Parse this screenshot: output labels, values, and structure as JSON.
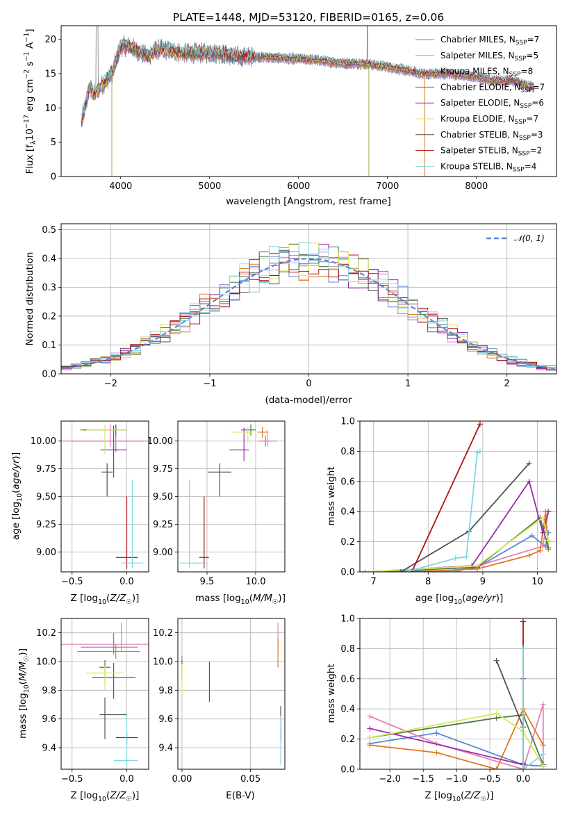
{
  "colors": {
    "Chabrier MILES": "#5b86d6",
    "Salpeter MILES": "#e57fb4",
    "Kroupa MILES": "#e07a1f",
    "Chabrier ELODIE": "#4a7a4a",
    "Salpeter ELODIE": "#9a2aa8",
    "Kroupa ELODIE": "#d7e85c",
    "Chabrier STELIB": "#505050",
    "Salpeter STELIB": "#b01010",
    "Kroupa STELIB": "#7fd8e0"
  },
  "chart_data": [
    {
      "id": "spectrum",
      "type": "line",
      "title": "PLATE=1448, MJD=53120, FIBERID=0165, z=0.06",
      "xlabel": "wavelength [Angstrom, rest frame]",
      "ylabel": "Flux [f$_\\lambda$10$^{-17}$ erg cm$^{-2}$ s$^{-1}$ A$^{-1}$]",
      "xlim": [
        3330,
        8900
      ],
      "ylim": [
        0,
        22
      ],
      "xticks": [
        4000,
        5000,
        6000,
        7000,
        8000
      ],
      "yticks": [
        0,
        5,
        10,
        15,
        20
      ],
      "grid": false,
      "legend_position": "top-right",
      "legend": [
        {
          "label": "Chabrier MILES, N$_{SSP}$=7",
          "color_key": "Chabrier MILES"
        },
        {
          "label": "Salpeter MILES, N$_{SSP}$=5",
          "color_key": "Salpeter MILES"
        },
        {
          "label": "Kroupa MILES, N$_{SSP}$=8",
          "color_key": "Kroupa MILES"
        },
        {
          "label": "Chabrier ELODIE, N$_{SSP}$=7",
          "color_key": "Chabrier ELODIE"
        },
        {
          "label": "Salpeter ELODIE, N$_{SSP}$=6",
          "color_key": "Salpeter ELODIE"
        },
        {
          "label": "Kroupa ELODIE, N$_{SSP}$=7",
          "color_key": "Kroupa ELODIE"
        },
        {
          "label": "Chabrier STELIB, N$_{SSP}$=3",
          "color_key": "Chabrier STELIB"
        },
        {
          "label": "Salpeter STELIB, N$_{SSP}$=2",
          "color_key": "Salpeter STELIB"
        },
        {
          "label": "Kroupa STELIB, N$_{SSP}$=4",
          "color_key": "Kroupa STELIB"
        }
      ],
      "continuum": [
        [
          3560,
          8
        ],
        [
          3650,
          13
        ],
        [
          3700,
          12
        ],
        [
          3800,
          13.5
        ],
        [
          3900,
          15
        ],
        [
          4000,
          19
        ],
        [
          4100,
          19
        ],
        [
          4300,
          17.5
        ],
        [
          4400,
          18.5
        ],
        [
          4500,
          18.5
        ],
        [
          4700,
          18
        ],
        [
          4900,
          18
        ],
        [
          5100,
          18
        ],
        [
          5300,
          17.5
        ],
        [
          5500,
          17.5
        ],
        [
          5900,
          17.2
        ],
        [
          6200,
          17
        ],
        [
          6500,
          16.5
        ],
        [
          6700,
          16.5
        ],
        [
          7000,
          16
        ],
        [
          7200,
          15.5
        ],
        [
          7400,
          15
        ],
        [
          7700,
          15
        ],
        [
          8000,
          14.5
        ],
        [
          8200,
          14
        ],
        [
          8400,
          14
        ],
        [
          8650,
          13
        ]
      ],
      "dropouts": [
        [
          3900,
          0
        ],
        [
          6790,
          0
        ],
        [
          7420,
          0
        ]
      ]
    },
    {
      "id": "residuals",
      "type": "line",
      "xlabel": "(data-model)/error",
      "ylabel": "Normed distribution",
      "xlim": [
        -2.5,
        2.5
      ],
      "ylim": [
        0,
        0.52
      ],
      "xticks": [
        -2,
        -1,
        0,
        1,
        2
      ],
      "yticks": [
        0.0,
        0.1,
        0.2,
        0.3,
        0.4,
        0.5
      ],
      "grid": true,
      "legend_position": "top-right",
      "reference": {
        "label": "$\\mathcal{N}(0,1)$",
        "mean": 0,
        "sigma": 1,
        "color": "#5b86d6"
      },
      "bin_width": 0.1
    },
    {
      "id": "age-vs-Z",
      "type": "scatter",
      "xlabel": "Z [log$_{10}$($Z/Z_\\odot$)]",
      "ylabel": "age  [log$_{10}$($age/yr$)]",
      "xlim": [
        -0.6,
        0.2
      ],
      "ylim": [
        8.82,
        10.18
      ],
      "xticks": [
        -0.5,
        0.0
      ],
      "yticks": [
        9.0,
        9.25,
        9.5,
        9.75,
        10.0
      ],
      "grid": true,
      "points": [
        {
          "key": "Chabrier MILES",
          "x": -0.1,
          "y": 10.0,
          "xerr": [
            0.4,
            0.25
          ],
          "yerr": [
            0.1,
            0.1
          ]
        },
        {
          "key": "Salpeter MILES",
          "x": -0.15,
          "y": 10.0,
          "xerr": [
            0.5,
            0.4
          ],
          "yerr": [
            0.05,
            0.15
          ]
        },
        {
          "key": "Kroupa MILES",
          "x": -0.1,
          "y": 10.1,
          "xerr": [
            0.33,
            0.1
          ],
          "yerr": [
            0.05,
            0.05
          ]
        },
        {
          "key": "Chabrier ELODIE",
          "x": -0.1,
          "y": 10.1,
          "xerr": [
            0.3,
            0.1
          ],
          "yerr": [
            0.05,
            0.05
          ]
        },
        {
          "key": "Salpeter ELODIE",
          "x": -0.12,
          "y": 9.92,
          "xerr": [
            0.12,
            0.12
          ],
          "yerr": [
            0.25,
            0.22
          ]
        },
        {
          "key": "Kroupa ELODIE",
          "x": -0.2,
          "y": 10.1,
          "xerr": [
            0.17,
            0.2
          ],
          "yerr": [
            0.22,
            0.05
          ]
        },
        {
          "key": "Chabrier STELIB",
          "x": -0.18,
          "y": 9.72,
          "xerr": [
            0.05,
            0.05
          ],
          "yerr": [
            0.22,
            0.08
          ]
        },
        {
          "key": "Salpeter STELIB",
          "x": 0.0,
          "y": 8.95,
          "xerr": [
            0.1,
            0.1
          ],
          "yerr": [
            0.1,
            0.55
          ]
        },
        {
          "key": "Kroupa STELIB",
          "x": 0.05,
          "y": 8.9,
          "xerr": [
            0.1,
            0.1
          ],
          "yerr": [
            0.05,
            0.75
          ]
        }
      ]
    },
    {
      "id": "age-vs-mass",
      "type": "scatter",
      "xlabel": "mass [log$_{10}$($M/M_\\odot$)]",
      "xlim": [
        9.2,
        10.3
      ],
      "ylim": [
        8.82,
        10.18
      ],
      "xticks": [
        9.5,
        10.0
      ],
      "yticks": [
        9.0,
        9.25,
        9.5,
        9.75,
        10.0
      ],
      "grid": true,
      "points": [
        {
          "key": "Chabrier MILES",
          "x": 10.1,
          "y": 10.0,
          "xerr": [
            0.05,
            0.05
          ],
          "yerr": [
            0.05,
            0.05
          ]
        },
        {
          "key": "Salpeter MILES",
          "x": 10.12,
          "y": 10.0,
          "xerr": [
            0.1,
            0.1
          ],
          "yerr": [
            0.05,
            0.1
          ]
        },
        {
          "key": "Kroupa MILES",
          "x": 10.07,
          "y": 10.08,
          "xerr": [
            0.05,
            0.05
          ],
          "yerr": [
            0.05,
            0.05
          ]
        },
        {
          "key": "Chabrier ELODIE",
          "x": 9.95,
          "y": 10.1,
          "xerr": [
            0.1,
            0.05
          ],
          "yerr": [
            0.05,
            0.05
          ]
        },
        {
          "key": "Salpeter ELODIE",
          "x": 9.88,
          "y": 9.92,
          "xerr": [
            0.15,
            0.05
          ],
          "yerr": [
            0.1,
            0.2
          ]
        },
        {
          "key": "Kroupa ELODIE",
          "x": 9.92,
          "y": 10.08,
          "xerr": [
            0.17,
            0.05
          ],
          "yerr": [
            0.1,
            0.05
          ]
        },
        {
          "key": "Chabrier STELIB",
          "x": 9.63,
          "y": 9.72,
          "xerr": [
            0.12,
            0.12
          ],
          "yerr": [
            0.22,
            0.08
          ]
        },
        {
          "key": "Salpeter STELIB",
          "x": 9.47,
          "y": 8.95,
          "xerr": [
            0.05,
            0.05
          ],
          "yerr": [
            0.1,
            0.55
          ]
        },
        {
          "key": "Kroupa STELIB",
          "x": 9.32,
          "y": 8.9,
          "xerr": [
            0.1,
            0.17
          ],
          "yerr": [
            0.05,
            0.75
          ]
        }
      ]
    },
    {
      "id": "mass-weight-vs-age",
      "type": "line",
      "xlabel": "age  [log$_{10}$($age/yr$)]",
      "ylabel": "mass weight",
      "xlim": [
        6.75,
        10.35
      ],
      "ylim": [
        0,
        1.0
      ],
      "xticks": [
        7,
        8,
        9,
        10
      ],
      "yticks": [
        0.0,
        0.2,
        0.4,
        0.6,
        0.8,
        1.0
      ],
      "grid": true,
      "series": [
        {
          "key": "Chabrier MILES",
          "x": [
            6.85,
            8.5,
            8.9,
            9.9,
            10.15,
            10.2
          ],
          "y": [
            0.0,
            0.01,
            0.03,
            0.24,
            0.17,
            0.26
          ]
        },
        {
          "key": "Salpeter MILES",
          "x": [
            6.85,
            8.5,
            9.0,
            10.1,
            10.2
          ],
          "y": [
            0.0,
            0.0,
            0.05,
            0.17,
            0.4
          ]
        },
        {
          "key": "Kroupa MILES",
          "x": [
            6.85,
            7.7,
            8.9,
            9.85,
            10.05,
            10.15,
            10.2
          ],
          "y": [
            0.0,
            0.0,
            0.02,
            0.11,
            0.14,
            0.4,
            0.15
          ]
        },
        {
          "key": "Chabrier ELODIE",
          "x": [
            6.85,
            8.9,
            10.05,
            10.2
          ],
          "y": [
            0.0,
            0.03,
            0.36,
            0.16
          ]
        },
        {
          "key": "Salpeter ELODIE",
          "x": [
            6.85,
            8.8,
            9.85,
            10.1,
            10.2
          ],
          "y": [
            0.0,
            0.04,
            0.6,
            0.26,
            0.4
          ]
        },
        {
          "key": "Kroupa ELODIE",
          "x": [
            6.85,
            8.9,
            10.1,
            10.2
          ],
          "y": [
            0.0,
            0.04,
            0.36,
            0.21
          ]
        },
        {
          "key": "Chabrier STELIB",
          "x": [
            7.5,
            8.75,
            9.85
          ],
          "y": [
            0.0,
            0.27,
            0.72
          ]
        },
        {
          "key": "Salpeter STELIB",
          "x": [
            7.7,
            8.95
          ],
          "y": [
            0.0,
            0.98
          ]
        },
        {
          "key": "Kroupa STELIB",
          "x": [
            7.6,
            8.5,
            8.7,
            8.9,
            8.95
          ],
          "y": [
            0.0,
            0.09,
            0.1,
            0.79,
            0.8
          ]
        }
      ]
    },
    {
      "id": "mass-vs-Z",
      "type": "scatter",
      "xlabel": "Z [log$_{10}$($Z/Z_\\odot$)]",
      "ylabel": "mass [log$_{10}$($M/M_\\odot$)]",
      "xlim": [
        -0.6,
        0.2
      ],
      "ylim": [
        9.25,
        10.3
      ],
      "xticks": [
        -0.5,
        0.0
      ],
      "yticks": [
        9.4,
        9.6,
        9.8,
        10.0,
        10.2
      ],
      "grid": true,
      "points": [
        {
          "key": "Chabrier MILES",
          "x": -0.12,
          "y": 10.1,
          "xerr": [
            0.3,
            0.22
          ],
          "yerr": [
            0.05,
            0.1
          ]
        },
        {
          "key": "Salpeter MILES",
          "x": -0.05,
          "y": 10.12,
          "xerr": [
            0.55,
            0.25
          ],
          "yerr": [
            0.05,
            0.15
          ]
        },
        {
          "key": "Kroupa MILES",
          "x": -0.1,
          "y": 10.07,
          "xerr": [
            0.35,
            0.22
          ],
          "yerr": [
            0.05,
            0.05
          ]
        },
        {
          "key": "Chabrier ELODIE",
          "x": -0.2,
          "y": 9.96,
          "xerr": [
            0.05,
            0.05
          ],
          "yerr": [
            0.1,
            0.05
          ]
        },
        {
          "key": "Salpeter ELODIE",
          "x": -0.12,
          "y": 9.89,
          "xerr": [
            0.2,
            0.2
          ],
          "yerr": [
            0.15,
            0.1
          ]
        },
        {
          "key": "Kroupa ELODIE",
          "x": -0.2,
          "y": 9.92,
          "xerr": [
            0.17,
            0.17
          ],
          "yerr": [
            0.12,
            0.05
          ]
        },
        {
          "key": "Chabrier STELIB",
          "x": -0.2,
          "y": 9.63,
          "xerr": [
            0.05,
            0.2
          ],
          "yerr": [
            0.17,
            0.12
          ]
        },
        {
          "key": "Salpeter STELIB",
          "x": 0.0,
          "y": 9.47,
          "xerr": [
            0.1,
            0.1
          ],
          "yerr": [
            0.05,
            0.05
          ]
        },
        {
          "key": "Kroupa STELIB",
          "x": 0.0,
          "y": 9.31,
          "xerr": [
            0.12,
            0.1
          ],
          "yerr": [
            0.05,
            0.32
          ]
        }
      ]
    },
    {
      "id": "mass-vs-EBV",
      "type": "scatter",
      "xlabel": "E(B-V)",
      "xlim": [
        -0.003,
        0.075
      ],
      "ylim": [
        9.25,
        10.3
      ],
      "xticks": [
        0.0,
        0.05
      ],
      "yticks": [
        9.4,
        9.6,
        9.8,
        10.0,
        10.2
      ],
      "grid": true,
      "points": [
        {
          "key": "Chabrier MILES",
          "x": 0.0,
          "y": 10.0,
          "xerr": [
            0,
            0
          ],
          "yerr": [
            0.0,
            0.04
          ]
        },
        {
          "key": "Salpeter MILES",
          "x": 0.07,
          "y": 10.12,
          "xerr": [
            0,
            0
          ],
          "yerr": [
            0.05,
            0.15
          ]
        },
        {
          "key": "Kroupa MILES",
          "x": 0.07,
          "y": 10.06,
          "xerr": [
            0,
            0
          ],
          "yerr": [
            0.1,
            0.1
          ]
        },
        {
          "key": "Chabrier ELODIE",
          "x": 0.0,
          "y": 9.96,
          "xerr": [
            0,
            0
          ],
          "yerr": [
            0.1,
            0.05
          ]
        },
        {
          "key": "Salpeter ELODIE",
          "x": 0.02,
          "y": 9.86,
          "xerr": [
            0,
            0
          ],
          "yerr": [
            0.14,
            0.14
          ]
        },
        {
          "key": "Kroupa ELODIE",
          "x": 0.0,
          "y": 9.9,
          "xerr": [
            0,
            0
          ],
          "yerr": [
            0.12,
            0.08
          ]
        },
        {
          "key": "Chabrier STELIB",
          "x": 0.072,
          "y": 9.55,
          "xerr": [
            0,
            0
          ],
          "yerr": [
            0.1,
            0.14
          ]
        },
        {
          "key": "Salpeter STELIB",
          "x": 0.072,
          "y": 9.5,
          "xerr": [
            0,
            0
          ],
          "yerr": [
            0.05,
            0.05
          ]
        },
        {
          "key": "Kroupa STELIB",
          "x": 0.072,
          "y": 9.45,
          "xerr": [
            0,
            0
          ],
          "yerr": [
            0.17,
            0.17
          ]
        }
      ]
    },
    {
      "id": "mass-weight-vs-Z",
      "type": "line",
      "xlabel": "Z [log$_{10}$($Z/Z_\\odot$)]",
      "ylabel": "mass weight",
      "xlim": [
        -2.45,
        0.5
      ],
      "ylim": [
        0,
        1.0
      ],
      "xticks": [
        -2.0,
        -1.5,
        -1.0,
        -0.5,
        0.0
      ],
      "yticks": [
        0.0,
        0.2,
        0.4,
        0.6,
        0.8,
        1.0
      ],
      "grid": true,
      "series": [
        {
          "key": "Chabrier MILES",
          "x": [
            -2.3,
            -1.3,
            0.0,
            0.3
          ],
          "y": [
            0.17,
            0.24,
            0.03,
            0.02
          ]
        },
        {
          "key": "Salpeter MILES",
          "x": [
            -2.3,
            -1.3,
            0.0,
            0.3,
            0.3
          ],
          "y": [
            0.35,
            0.17,
            0.0,
            0.43,
            0.02
          ]
        },
        {
          "key": "Kroupa MILES",
          "x": [
            -2.3,
            -1.3,
            -0.4,
            0.0,
            0.3
          ],
          "y": [
            0.16,
            0.11,
            0.0,
            0.4,
            0.16
          ]
        },
        {
          "key": "Chabrier ELODIE",
          "x": [
            -2.3,
            -0.4,
            0.0,
            0.3
          ],
          "y": [
            0.21,
            0.34,
            0.36,
            0.03
          ]
        },
        {
          "key": "Salpeter ELODIE",
          "x": [
            -2.3,
            0.0,
            0.0,
            0.0
          ],
          "y": [
            0.27,
            0.03,
            0.6,
            0.04
          ]
        },
        {
          "key": "Kroupa ELODIE",
          "x": [
            -2.3,
            -0.4,
            0.0,
            0.3
          ],
          "y": [
            0.21,
            0.37,
            0.25,
            0.02
          ]
        },
        {
          "key": "Chabrier STELIB",
          "x": [
            -0.4,
            0.0
          ],
          "y": [
            0.72,
            0.28
          ]
        },
        {
          "key": "Salpeter STELIB",
          "x": [
            0.0,
            0.0
          ],
          "y": [
            0.0,
            0.98
          ]
        },
        {
          "key": "Kroupa STELIB",
          "x": [
            0.0,
            0.0,
            0.3
          ],
          "y": [
            0.8,
            0.0,
            0.1
          ]
        }
      ]
    }
  ]
}
